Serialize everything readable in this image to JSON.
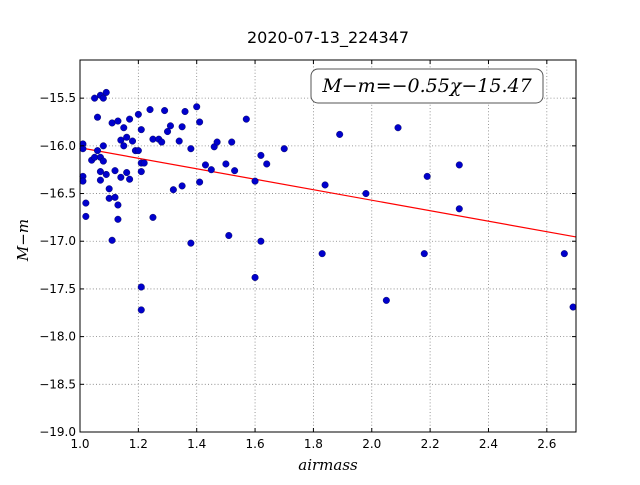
{
  "chart_data": {
    "type": "scatter",
    "title": "2020-07-13_224347",
    "xlabel": "airmass",
    "ylabel": "M−m",
    "xlim": [
      1.0,
      2.7
    ],
    "ylim": [
      -19.0,
      -15.1
    ],
    "xticks": [
      1.0,
      1.2,
      1.4,
      1.6,
      1.8,
      2.0,
      2.2,
      2.4,
      2.6
    ],
    "xtick_labels": [
      "1.0",
      "1.2",
      "1.4",
      "1.6",
      "1.8",
      "2.0",
      "2.2",
      "2.4",
      "2.6"
    ],
    "yticks": [
      -15.5,
      -16.0,
      -16.5,
      -17.0,
      -17.5,
      -18.0,
      -18.5,
      -19.0
    ],
    "ytick_labels": [
      "−15.5",
      "−16.0",
      "−16.5",
      "−17.0",
      "−17.5",
      "−18.0",
      "−18.5",
      "−19.0"
    ],
    "grid": true,
    "annotation": "M−m=−0.55χ−15.47",
    "fit": {
      "slope": -0.55,
      "intercept": -15.47,
      "color": "#ff0000"
    },
    "point_color": "#0000cc",
    "points": [
      [
        1.01,
        -15.98
      ],
      [
        1.01,
        -16.03
      ],
      [
        1.01,
        -16.32
      ],
      [
        1.01,
        -16.37
      ],
      [
        1.02,
        -16.6
      ],
      [
        1.02,
        -16.74
      ],
      [
        1.04,
        -16.15
      ],
      [
        1.05,
        -16.12
      ],
      [
        1.05,
        -15.5
      ],
      [
        1.06,
        -16.05
      ],
      [
        1.06,
        -15.7
      ],
      [
        1.07,
        -15.47
      ],
      [
        1.07,
        -16.12
      ],
      [
        1.07,
        -16.27
      ],
      [
        1.07,
        -16.36
      ],
      [
        1.08,
        -16.0
      ],
      [
        1.08,
        -16.16
      ],
      [
        1.08,
        -15.5
      ],
      [
        1.09,
        -15.44
      ],
      [
        1.09,
        -16.3
      ],
      [
        1.1,
        -16.45
      ],
      [
        1.1,
        -16.55
      ],
      [
        1.11,
        -15.76
      ],
      [
        1.11,
        -16.99
      ],
      [
        1.12,
        -16.26
      ],
      [
        1.12,
        -16.54
      ],
      [
        1.13,
        -15.74
      ],
      [
        1.13,
        -16.62
      ],
      [
        1.13,
        -16.77
      ],
      [
        1.14,
        -15.94
      ],
      [
        1.14,
        -16.33
      ],
      [
        1.15,
        -15.81
      ],
      [
        1.15,
        -16.0
      ],
      [
        1.16,
        -16.28
      ],
      [
        1.16,
        -15.91
      ],
      [
        1.17,
        -15.72
      ],
      [
        1.17,
        -16.35
      ],
      [
        1.18,
        -15.95
      ],
      [
        1.19,
        -16.05
      ],
      [
        1.2,
        -15.67
      ],
      [
        1.2,
        -16.05
      ],
      [
        1.21,
        -16.18
      ],
      [
        1.21,
        -15.83
      ],
      [
        1.21,
        -16.27
      ],
      [
        1.22,
        -16.18
      ],
      [
        1.21,
        -17.48
      ],
      [
        1.21,
        -17.72
      ],
      [
        1.24,
        -15.62
      ],
      [
        1.25,
        -15.93
      ],
      [
        1.25,
        -16.75
      ],
      [
        1.27,
        -15.93
      ],
      [
        1.28,
        -15.96
      ],
      [
        1.29,
        -15.63
      ],
      [
        1.3,
        -15.85
      ],
      [
        1.31,
        -15.79
      ],
      [
        1.32,
        -16.46
      ],
      [
        1.34,
        -15.95
      ],
      [
        1.35,
        -16.42
      ],
      [
        1.35,
        -15.8
      ],
      [
        1.36,
        -15.64
      ],
      [
        1.38,
        -16.03
      ],
      [
        1.38,
        -17.02
      ],
      [
        1.4,
        -15.59
      ],
      [
        1.41,
        -15.75
      ],
      [
        1.41,
        -16.38
      ],
      [
        1.43,
        -16.2
      ],
      [
        1.45,
        -16.25
      ],
      [
        1.46,
        -16.01
      ],
      [
        1.47,
        -15.96
      ],
      [
        1.5,
        -16.19
      ],
      [
        1.51,
        -16.94
      ],
      [
        1.52,
        -15.96
      ],
      [
        1.53,
        -16.26
      ],
      [
        1.57,
        -15.72
      ],
      [
        1.6,
        -16.37
      ],
      [
        1.6,
        -17.38
      ],
      [
        1.62,
        -16.1
      ],
      [
        1.62,
        -17.0
      ],
      [
        1.64,
        -16.19
      ],
      [
        1.7,
        -16.03
      ],
      [
        1.83,
        -17.13
      ],
      [
        1.84,
        -16.41
      ],
      [
        1.89,
        -15.88
      ],
      [
        1.98,
        -16.5
      ],
      [
        2.05,
        -17.62
      ],
      [
        2.09,
        -15.81
      ],
      [
        2.18,
        -17.13
      ],
      [
        2.19,
        -16.32
      ],
      [
        2.3,
        -16.2
      ],
      [
        2.3,
        -16.66
      ],
      [
        2.66,
        -17.13
      ],
      [
        2.69,
        -17.69
      ]
    ]
  }
}
